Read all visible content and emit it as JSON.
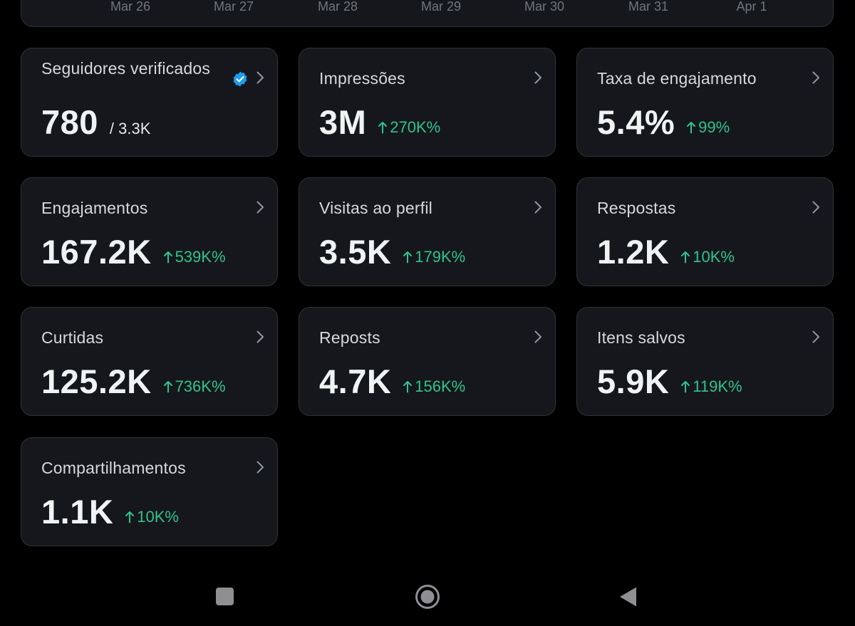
{
  "chart": {
    "dates": [
      "Mar 26",
      "Mar 27",
      "Mar 28",
      "Mar 29",
      "Mar 30",
      "Mar 31",
      "Apr 1"
    ]
  },
  "cards": {
    "verified_followers": {
      "title": "Seguidores verificados",
      "value": "780",
      "sub": "/ 3.3K",
      "icon": "verified-badge-icon"
    },
    "impressions": {
      "title": "Impressões",
      "value": "3M",
      "change": "270K%"
    },
    "engagement_rate": {
      "title": "Taxa de engajamento",
      "value": "5.4%",
      "change": "99%"
    },
    "engagements": {
      "title": "Engajamentos",
      "value": "167.2K",
      "change": "539K%"
    },
    "profile_visits": {
      "title": "Visitas ao perfil",
      "value": "3.5K",
      "change": "179K%"
    },
    "replies": {
      "title": "Respostas",
      "value": "1.2K",
      "change": "10K%"
    },
    "likes": {
      "title": "Curtidas",
      "value": "125.2K",
      "change": "736K%"
    },
    "reposts": {
      "title": "Reposts",
      "value": "4.7K",
      "change": "156K%"
    },
    "bookmarks": {
      "title": "Itens salvos",
      "value": "5.9K",
      "change": "119K%"
    },
    "shares": {
      "title": "Compartilhamentos",
      "value": "1.1K",
      "change": "10K%"
    }
  },
  "navigation": {
    "buttons": [
      "recents-square-icon",
      "home-circle-icon",
      "back-triangle-icon"
    ]
  },
  "colors": {
    "background": "#000000",
    "card": "#16171c",
    "border": "#2f3336",
    "positive": "#2fc48d",
    "verified": "#1d9bf0"
  }
}
